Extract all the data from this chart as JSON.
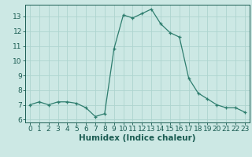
{
  "x": [
    0,
    1,
    2,
    3,
    4,
    5,
    6,
    7,
    8,
    9,
    10,
    11,
    12,
    13,
    14,
    15,
    16,
    17,
    18,
    19,
    20,
    21,
    22,
    23
  ],
  "y": [
    7.0,
    7.2,
    7.0,
    7.2,
    7.2,
    7.1,
    6.8,
    6.2,
    6.4,
    10.8,
    13.1,
    12.9,
    13.2,
    13.5,
    12.5,
    11.9,
    11.6,
    8.8,
    7.8,
    7.4,
    7.0,
    6.8,
    6.8,
    6.5
  ],
  "line_color": "#2e7d6e",
  "marker": "+",
  "bg_color": "#cce8e4",
  "grid_color": "#aed4cf",
  "xlabel": "Humidex (Indice chaleur)",
  "xlim": [
    -0.5,
    23.5
  ],
  "ylim": [
    5.8,
    13.8
  ],
  "yticks": [
    6,
    7,
    8,
    9,
    10,
    11,
    12,
    13
  ],
  "xticks": [
    0,
    1,
    2,
    3,
    4,
    5,
    6,
    7,
    8,
    9,
    10,
    11,
    12,
    13,
    14,
    15,
    16,
    17,
    18,
    19,
    20,
    21,
    22,
    23
  ],
  "label_color": "#1a5c52",
  "tick_color": "#1a5c52",
  "font_size": 6.5,
  "xlabel_font_size": 7.5
}
